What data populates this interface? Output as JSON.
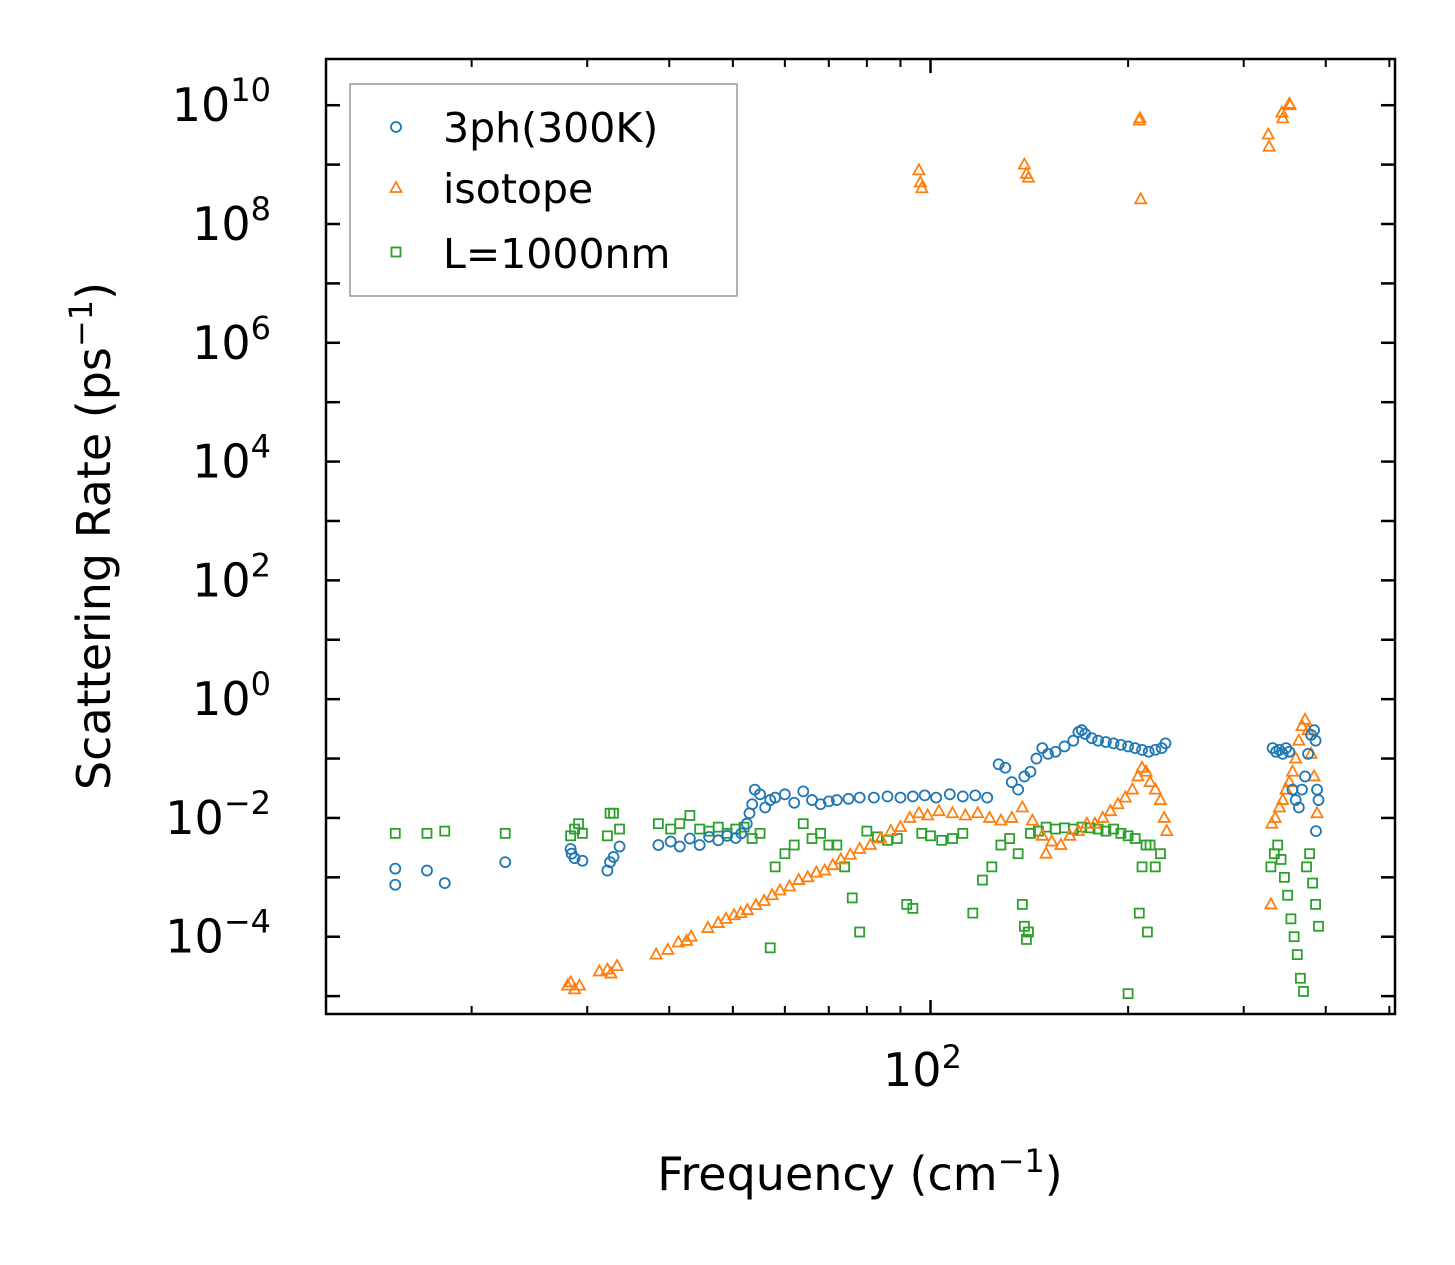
{
  "chart_data": {
    "type": "scatter",
    "title": "",
    "xlabel": "Frequency (cm",
    "xlabel_sup": "−1",
    "xlabel_end": ")",
    "ylabel": "Scattering Rate (ps",
    "ylabel_sup": "−1",
    "ylabel_end": ")",
    "xscale": "log",
    "yscale": "log",
    "xlim": [
      12,
      510
    ],
    "ylim": [
      5e-06,
      60000000000.0
    ],
    "x_ticks": [
      {
        "value": 100,
        "base": "10",
        "exp": "2"
      }
    ],
    "y_ticks": [
      {
        "value": 0.0001,
        "base": "10",
        "exp": "−4"
      },
      {
        "value": 0.01,
        "base": "10",
        "exp": "−2"
      },
      {
        "value": 1,
        "base": "10",
        "exp": "0"
      },
      {
        "value": 100,
        "base": "10",
        "exp": "2"
      },
      {
        "value": 10000.0,
        "base": "10",
        "exp": "4"
      },
      {
        "value": 1000000.0,
        "base": "10",
        "exp": "6"
      },
      {
        "value": 100000000.0,
        "base": "10",
        "exp": "8"
      },
      {
        "value": 10000000000.0,
        "base": "10",
        "exp": "10"
      }
    ],
    "legend_position": "top-left",
    "series": [
      {
        "name": "3ph(300K)",
        "marker": "circle",
        "color": "#1f77b4",
        "points": [
          [
            15.3,
            0.0014
          ],
          [
            15.3,
            0.00075
          ],
          [
            17.1,
            0.0013
          ],
          [
            18.2,
            0.0008
          ],
          [
            22.5,
            0.0018
          ],
          [
            28.3,
            0.003
          ],
          [
            28.4,
            0.0025
          ],
          [
            28.7,
            0.0021
          ],
          [
            29.5,
            0.0019
          ],
          [
            32.2,
            0.0013
          ],
          [
            32.5,
            0.0018
          ],
          [
            32.9,
            0.0022
          ],
          [
            33.6,
            0.0033
          ],
          [
            38.5,
            0.0035
          ],
          [
            40.2,
            0.004
          ],
          [
            41.5,
            0.0033
          ],
          [
            43.0,
            0.0045
          ],
          [
            44.5,
            0.0035
          ],
          [
            46.0,
            0.0048
          ],
          [
            47.5,
            0.0042
          ],
          [
            49.0,
            0.005
          ],
          [
            50.5,
            0.0046
          ],
          [
            51.5,
            0.0055
          ],
          [
            52.5,
            0.008
          ],
          [
            53.0,
            0.012
          ],
          [
            53.5,
            0.017
          ],
          [
            54.0,
            0.03
          ],
          [
            55.0,
            0.025
          ],
          [
            56.0,
            0.015
          ],
          [
            57.0,
            0.02
          ],
          [
            58.0,
            0.022
          ],
          [
            60.0,
            0.025
          ],
          [
            62.0,
            0.018
          ],
          [
            64.0,
            0.028
          ],
          [
            66.0,
            0.02
          ],
          [
            68.0,
            0.017
          ],
          [
            70.0,
            0.019
          ],
          [
            72.0,
            0.02
          ],
          [
            75.0,
            0.021
          ],
          [
            78.0,
            0.022
          ],
          [
            82.0,
            0.022
          ],
          [
            86.0,
            0.023
          ],
          [
            90.0,
            0.022
          ],
          [
            94.0,
            0.023
          ],
          [
            98.0,
            0.024
          ],
          [
            102.0,
            0.022
          ],
          [
            107.0,
            0.025
          ],
          [
            112.0,
            0.023
          ],
          [
            117.0,
            0.024
          ],
          [
            122.0,
            0.022
          ],
          [
            127.0,
            0.08
          ],
          [
            130.0,
            0.07
          ],
          [
            133.0,
            0.04
          ],
          [
            136.0,
            0.03
          ],
          [
            139.0,
            0.05
          ],
          [
            142.0,
            0.06
          ],
          [
            145.0,
            0.1
          ],
          [
            148.0,
            0.15
          ],
          [
            151.0,
            0.12
          ],
          [
            155.0,
            0.13
          ],
          [
            160.0,
            0.16
          ],
          [
            165.0,
            0.2
          ],
          [
            168.0,
            0.28
          ],
          [
            170.0,
            0.3
          ],
          [
            172.0,
            0.26
          ],
          [
            176.0,
            0.22
          ],
          [
            180.0,
            0.2
          ],
          [
            185.0,
            0.19
          ],
          [
            190.0,
            0.18
          ],
          [
            195.0,
            0.17
          ],
          [
            200.0,
            0.16
          ],
          [
            205.0,
            0.15
          ],
          [
            210.0,
            0.14
          ],
          [
            215.0,
            0.13
          ],
          [
            220.0,
            0.14
          ],
          [
            225.0,
            0.15
          ],
          [
            228.0,
            0.18
          ],
          [
            332.0,
            0.15
          ],
          [
            336.0,
            0.13
          ],
          [
            340.0,
            0.14
          ],
          [
            344.0,
            0.12
          ],
          [
            348.0,
            0.15
          ],
          [
            352.0,
            0.13
          ],
          [
            356.0,
            0.03
          ],
          [
            360.0,
            0.02
          ],
          [
            364.0,
            0.015
          ],
          [
            368.0,
            0.03
          ],
          [
            372.0,
            0.05
          ],
          [
            376.0,
            0.12
          ],
          [
            380.0,
            0.25
          ],
          [
            384.0,
            0.3
          ],
          [
            386.0,
            0.2
          ],
          [
            388.0,
            0.03
          ],
          [
            390.0,
            0.02
          ],
          [
            386.5,
            0.006
          ]
        ]
      },
      {
        "name": "isotope",
        "marker": "triangle",
        "color": "#ff7f0e",
        "points": [
          [
            28.0,
            1.5e-05
          ],
          [
            28.3,
            1.7e-05
          ],
          [
            28.7,
            1.3e-05
          ],
          [
            29.2,
            1.5e-05
          ],
          [
            31.3,
            2.6e-05
          ],
          [
            32.2,
            2.8e-05
          ],
          [
            32.6,
            2.4e-05
          ],
          [
            33.3,
            3.2e-05
          ],
          [
            38.2,
            5e-05
          ],
          [
            39.8,
            6e-05
          ],
          [
            41.3,
            8e-05
          ],
          [
            42.5,
            8.5e-05
          ],
          [
            43.2,
            0.0001
          ],
          [
            45.8,
            0.00014
          ],
          [
            47.5,
            0.00017
          ],
          [
            48.8,
            0.0002
          ],
          [
            50.2,
            0.00023
          ],
          [
            51.4,
            0.00025
          ],
          [
            52.6,
            0.00028
          ],
          [
            54.2,
            0.00034
          ],
          [
            55.8,
            0.0004
          ],
          [
            57.4,
            0.0005
          ],
          [
            59.0,
            0.0006
          ],
          [
            61.0,
            0.0007
          ],
          [
            63.0,
            0.0009
          ],
          [
            65.0,
            0.001
          ],
          [
            67.0,
            0.0012
          ],
          [
            69.0,
            0.0013
          ],
          [
            71.0,
            0.0016
          ],
          [
            73.0,
            0.002
          ],
          [
            75.5,
            0.0024
          ],
          [
            78.0,
            0.003
          ],
          [
            81.0,
            0.0035
          ],
          [
            84.0,
            0.0045
          ],
          [
            87.0,
            0.006
          ],
          [
            90.0,
            0.007
          ],
          [
            93.0,
            0.01
          ],
          [
            96.0,
            0.012
          ],
          [
            99.0,
            0.011
          ],
          [
            103.0,
            0.013
          ],
          [
            108.0,
            0.012
          ],
          [
            113.0,
            0.011
          ],
          [
            118.0,
            0.012
          ],
          [
            123.0,
            0.01
          ],
          [
            128.0,
            0.009
          ],
          [
            133.0,
            0.01
          ],
          [
            138.0,
            0.015
          ],
          [
            143.0,
            0.009
          ],
          [
            148.0,
            0.005
          ],
          [
            150.0,
            0.0025
          ],
          [
            153.0,
            0.004
          ],
          [
            158.0,
            0.0035
          ],
          [
            163.0,
            0.005
          ],
          [
            168.0,
            0.006
          ],
          [
            173.0,
            0.008
          ],
          [
            178.0,
            0.008
          ],
          [
            183.0,
            0.01
          ],
          [
            188.0,
            0.013
          ],
          [
            193.0,
            0.017
          ],
          [
            198.0,
            0.022
          ],
          [
            203.0,
            0.03
          ],
          [
            207.0,
            0.05
          ],
          [
            210.0,
            0.07
          ],
          [
            213.0,
            0.06
          ],
          [
            216.0,
            0.04
          ],
          [
            220.0,
            0.03
          ],
          [
            224.0,
            0.02
          ],
          [
            227.0,
            0.01
          ],
          [
            229.0,
            0.006
          ],
          [
            331.0,
            0.008
          ],
          [
            335.0,
            0.01
          ],
          [
            340.0,
            0.015
          ],
          [
            344.0,
            0.02
          ],
          [
            348.0,
            0.03
          ],
          [
            352.0,
            0.04
          ],
          [
            356.0,
            0.06
          ],
          [
            360.0,
            0.1
          ],
          [
            364.0,
            0.2
          ],
          [
            368.0,
            0.35
          ],
          [
            372.0,
            0.45
          ],
          [
            376.0,
            0.3
          ],
          [
            380.0,
            0.12
          ],
          [
            384.0,
            0.05
          ],
          [
            388.0,
            0.012
          ],
          [
            330.0,
            0.00035
          ],
          [
            96.0,
            800000000
          ],
          [
            96.5,
            500000000
          ],
          [
            97.0,
            400000000
          ],
          [
            139.0,
            1000000000
          ],
          [
            140.0,
            700000000
          ],
          [
            141.0,
            600000000
          ],
          [
            208.0,
            5500000000
          ],
          [
            208.5,
            6000000000
          ],
          [
            209.0,
            260000000
          ],
          [
            327.0,
            3200000000
          ],
          [
            328.0,
            2000000000
          ],
          [
            343.0,
            7500000000
          ],
          [
            344.0,
            6000000000
          ],
          [
            352.0,
            10500000000
          ],
          [
            353.0,
            10000000000
          ]
        ]
      },
      {
        "name": "L=1000nm",
        "marker": "square",
        "color": "#2ca02c",
        "points": [
          [
            15.3,
            0.0055
          ],
          [
            17.1,
            0.0055
          ],
          [
            18.2,
            0.006
          ],
          [
            22.5,
            0.0055
          ],
          [
            28.3,
            0.005
          ],
          [
            28.7,
            0.0065
          ],
          [
            29.1,
            0.008
          ],
          [
            29.5,
            0.0055
          ],
          [
            32.2,
            0.005
          ],
          [
            32.5,
            0.012
          ],
          [
            32.9,
            0.012
          ],
          [
            33.6,
            0.0065
          ],
          [
            38.5,
            0.008
          ],
          [
            40.2,
            0.0065
          ],
          [
            41.5,
            0.008
          ],
          [
            43.0,
            0.011
          ],
          [
            44.5,
            0.0065
          ],
          [
            46.0,
            0.006
          ],
          [
            47.5,
            0.007
          ],
          [
            49.0,
            0.0055
          ],
          [
            50.5,
            0.0065
          ],
          [
            52.0,
            0.007
          ],
          [
            53.5,
            0.0045
          ],
          [
            55.0,
            0.0055
          ],
          [
            57.0,
            6.5e-05
          ],
          [
            58.0,
            0.0015
          ],
          [
            60.0,
            0.0025
          ],
          [
            62.0,
            0.0035
          ],
          [
            64.0,
            0.008
          ],
          [
            66.0,
            0.0045
          ],
          [
            68.0,
            0.0055
          ],
          [
            70.0,
            0.0035
          ],
          [
            72.0,
            0.0035
          ],
          [
            74.0,
            0.0015
          ],
          [
            76.0,
            0.00045
          ],
          [
            78.0,
            0.00012
          ],
          [
            80.0,
            0.006
          ],
          [
            83.0,
            0.0048
          ],
          [
            86.0,
            0.0042
          ],
          [
            89.0,
            0.0045
          ],
          [
            92.0,
            0.00035
          ],
          [
            94.0,
            0.0003
          ],
          [
            97.0,
            0.0055
          ],
          [
            100.0,
            0.005
          ],
          [
            104.0,
            0.0042
          ],
          [
            108.0,
            0.0045
          ],
          [
            112.0,
            0.0055
          ],
          [
            116.0,
            0.00025
          ],
          [
            120.0,
            0.0009
          ],
          [
            124.0,
            0.0015
          ],
          [
            128.0,
            0.0035
          ],
          [
            132.0,
            0.0045
          ],
          [
            136.0,
            0.0025
          ],
          [
            138.0,
            0.00035
          ],
          [
            139.0,
            0.00015
          ],
          [
            140.0,
            9e-05
          ],
          [
            141.0,
            0.00012
          ],
          [
            142.0,
            0.0055
          ],
          [
            146.0,
            0.006
          ],
          [
            150.0,
            0.007
          ],
          [
            155.0,
            0.0065
          ],
          [
            160.0,
            0.0068
          ],
          [
            165.0,
            0.0065
          ],
          [
            170.0,
            0.007
          ],
          [
            175.0,
            0.0068
          ],
          [
            180.0,
            0.0065
          ],
          [
            185.0,
            0.006
          ],
          [
            190.0,
            0.0065
          ],
          [
            195.0,
            0.0055
          ],
          [
            200.0,
            0.005
          ],
          [
            205.0,
            0.0045
          ],
          [
            208.0,
            0.00025
          ],
          [
            210.0,
            0.0015
          ],
          [
            213.0,
            0.0035
          ],
          [
            216.0,
            0.0035
          ],
          [
            220.0,
            0.0015
          ],
          [
            224.0,
            0.0025
          ],
          [
            200.0,
            1.1e-05
          ],
          [
            214.0,
            0.00012
          ],
          [
            330.0,
            0.0015
          ],
          [
            334.0,
            0.0025
          ],
          [
            338.0,
            0.0035
          ],
          [
            342.0,
            0.002
          ],
          [
            346.0,
            0.001
          ],
          [
            350.0,
            0.0005
          ],
          [
            354.0,
            0.0002
          ],
          [
            358.0,
            0.0001
          ],
          [
            362.0,
            5e-05
          ],
          [
            366.0,
            2e-05
          ],
          [
            370.0,
            1.2e-05
          ],
          [
            374.0,
            0.0015
          ],
          [
            378.0,
            0.0025
          ],
          [
            382.0,
            0.0008
          ],
          [
            386.0,
            0.00035
          ],
          [
            390.0,
            0.00015
          ]
        ]
      }
    ]
  }
}
